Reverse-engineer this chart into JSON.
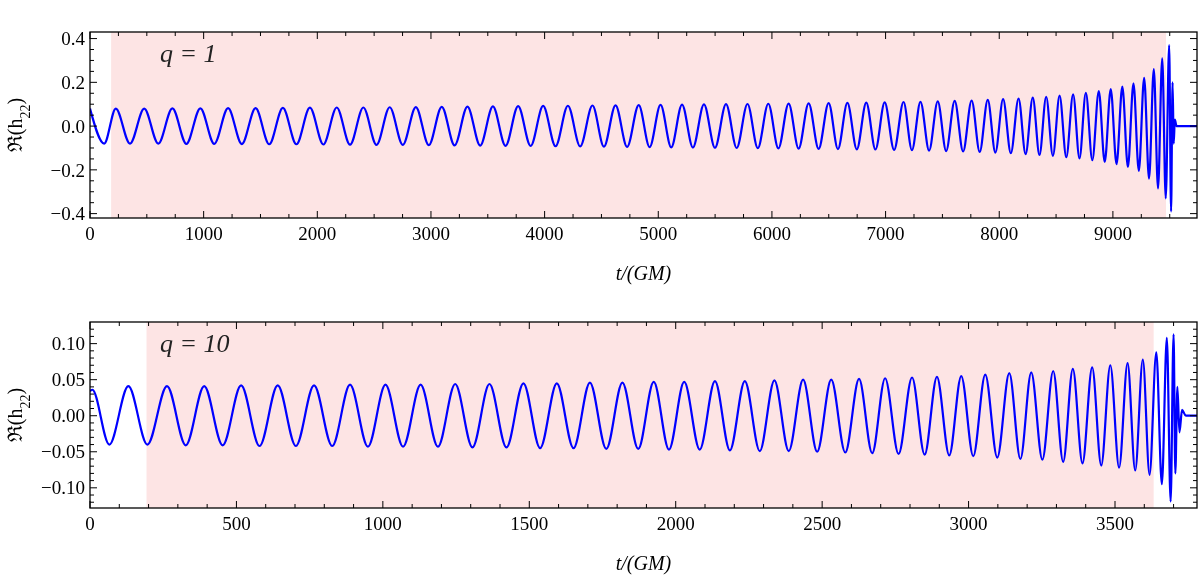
{
  "chart_data": [
    {
      "type": "line",
      "xlabel": "t/(GM)",
      "ylabel": "ℜ(h$_{22}$)",
      "annotations": [
        "q = 1"
      ],
      "xlim": [
        0,
        9740
      ],
      "ylim": [
        -0.42,
        0.43
      ],
      "xticks": [
        0,
        {
          "value": 250,
          "label": null
        },
        {
          "value": 500,
          "label": null
        },
        {
          "value": 750,
          "label": null
        },
        1000,
        {
          "value": 1250,
          "label": null
        },
        {
          "value": 1500,
          "label": null
        },
        {
          "value": 1750,
          "label": null
        },
        2000,
        {
          "value": 2250,
          "label": null
        },
        {
          "value": 2500,
          "label": null
        },
        {
          "value": 2750,
          "label": null
        },
        3000,
        {
          "value": 3250,
          "label": null
        },
        {
          "value": 3500,
          "label": null
        },
        {
          "value": 3750,
          "label": null
        },
        4000,
        {
          "value": 4250,
          "label": null
        },
        {
          "value": 4500,
          "label": null
        },
        {
          "value": 4750,
          "label": null
        },
        5000,
        {
          "value": 5250,
          "label": null
        },
        {
          "value": 5500,
          "label": null
        },
        {
          "value": 5750,
          "label": null
        },
        6000,
        {
          "value": 6250,
          "label": null
        },
        {
          "value": 6500,
          "label": null
        },
        {
          "value": 6750,
          "label": null
        },
        7000,
        {
          "value": 7250,
          "label": null
        },
        {
          "value": 7500,
          "label": null
        },
        {
          "value": 7750,
          "label": null
        },
        8000,
        {
          "value": 8250,
          "label": null
        },
        {
          "value": 8500,
          "label": null
        },
        {
          "value": 8750,
          "label": null
        },
        9000,
        {
          "value": 9250,
          "label": null
        },
        {
          "value": 9500,
          "label": null
        }
      ],
      "yticks": [
        {
          "value": -0.4,
          "label": "−0.4"
        },
        {
          "value": -0.35,
          "label": null
        },
        {
          "value": -0.3,
          "label": null
        },
        {
          "value": -0.25,
          "label": null
        },
        {
          "value": -0.2,
          "label": "−0.2"
        },
        {
          "value": -0.15,
          "label": null
        },
        {
          "value": -0.1,
          "label": null
        },
        {
          "value": -0.05,
          "label": null
        },
        {
          "value": 0,
          "label": "0.0"
        },
        {
          "value": 0.05,
          "label": null
        },
        {
          "value": 0.1,
          "label": null
        },
        {
          "value": 0.15,
          "label": null
        },
        0.2,
        {
          "value": 0.25,
          "label": null
        },
        {
          "value": 0.3,
          "label": null
        },
        {
          "value": 0.35,
          "label": null
        },
        0.4
      ],
      "bands": [
        {
          "axis": "x",
          "from": 186,
          "to": 9467,
          "color": "#fde4e4"
        }
      ],
      "series": [
        {
          "color": "#0000ff",
          "x": [
            0,
            125,
            227,
            352,
            477,
            601,
            725,
            848,
            971,
            1093,
            1215,
            1336,
            1457,
            1577,
            1697,
            1816,
            1935,
            2053,
            2171,
            2288,
            2405,
            2521,
            2637,
            2752,
            2867,
            2981,
            3095,
            3208,
            3321,
            3433,
            3545,
            3656,
            3767,
            3877,
            3987,
            4096,
            4205,
            4313,
            4421,
            4522,
            4624,
            4726,
            4828,
            4924,
            5020,
            5114,
            5209,
            5305,
            5402,
            5499,
            5596,
            5690,
            5785,
            5876,
            5968,
            6057,
            6147,
            6235,
            6323,
            6411,
            6499,
            6581,
            6664,
            6747,
            6830,
            6911,
            6992,
            7075,
            7158,
            7232,
            7307,
            7383,
            7459,
            7533,
            7608,
            7682,
            7757,
            7828,
            7899,
            7966,
            8034,
            8102,
            8170,
            8232,
            8295,
            8354,
            8413,
            8472,
            8531,
            8590,
            8650,
            8706,
            8762,
            8819,
            8876,
            8928,
            8981,
            9032,
            9083,
            9132,
            9181,
            9228,
            9275,
            9318,
            9360,
            9397,
            9434,
            9465,
            9495,
            9512,
            9525,
            9535,
            9545,
            9560,
            9740
          ],
          "values": [
            0.08,
            -0.08,
            0.08,
            -0.08,
            0.08,
            -0.08,
            0.081,
            -0.081,
            0.081,
            -0.081,
            0.082,
            -0.082,
            0.082,
            -0.083,
            0.083,
            -0.083,
            0.084,
            -0.084,
            0.085,
            -0.085,
            0.085,
            -0.086,
            0.086,
            -0.086,
            0.087,
            -0.087,
            0.088,
            -0.088,
            0.089,
            -0.089,
            0.09,
            -0.09,
            0.091,
            -0.091,
            0.092,
            -0.092,
            0.093,
            -0.093,
            0.094,
            -0.094,
            0.095,
            -0.095,
            0.096,
            -0.096,
            0.097,
            -0.097,
            0.098,
            -0.098,
            0.099,
            -0.099,
            0.1,
            -0.1,
            0.101,
            -0.101,
            0.102,
            -0.102,
            0.103,
            -0.103,
            0.104,
            -0.104,
            0.105,
            -0.105,
            0.106,
            -0.106,
            0.107,
            -0.107,
            0.108,
            -0.109,
            0.11,
            -0.11,
            0.111,
            -0.112,
            0.113,
            -0.114,
            0.115,
            -0.116,
            0.117,
            -0.118,
            0.12,
            -0.121,
            0.123,
            -0.124,
            0.126,
            -0.128,
            0.13,
            -0.132,
            0.134,
            -0.136,
            0.139,
            -0.142,
            0.145,
            -0.148,
            0.152,
            -0.156,
            0.16,
            -0.164,
            0.169,
            -0.174,
            0.18,
            -0.187,
            0.195,
            -0.205,
            0.22,
            -0.24,
            0.26,
            -0.285,
            0.31,
            -0.33,
            0.37,
            -0.39,
            0.2,
            -0.08,
            0.03,
            0,
            0
          ]
        }
      ]
    },
    {
      "type": "line",
      "xlabel": "t/(GM)",
      "ylabel": "ℜ(h$_{22}$)",
      "annotations": [
        "q = 10"
      ],
      "xlim": [
        0,
        3780
      ],
      "ylim": [
        -0.128,
        0.13
      ],
      "xticks": [
        0,
        {
          "value": 100,
          "label": null
        },
        {
          "value": 200,
          "label": null
        },
        {
          "value": 300,
          "label": null
        },
        {
          "value": 400,
          "label": null
        },
        500,
        {
          "value": 600,
          "label": null
        },
        {
          "value": 700,
          "label": null
        },
        {
          "value": 800,
          "label": null
        },
        {
          "value": 900,
          "label": null
        },
        1000,
        {
          "value": 1100,
          "label": null
        },
        {
          "value": 1200,
          "label": null
        },
        {
          "value": 1300,
          "label": null
        },
        {
          "value": 1400,
          "label": null
        },
        1500,
        {
          "value": 1600,
          "label": null
        },
        {
          "value": 1700,
          "label": null
        },
        {
          "value": 1800,
          "label": null
        },
        {
          "value": 1900,
          "label": null
        },
        2000,
        {
          "value": 2100,
          "label": null
        },
        {
          "value": 2200,
          "label": null
        },
        {
          "value": 2300,
          "label": null
        },
        {
          "value": 2400,
          "label": null
        },
        2500,
        {
          "value": 2600,
          "label": null
        },
        {
          "value": 2700,
          "label": null
        },
        {
          "value": 2800,
          "label": null
        },
        {
          "value": 2900,
          "label": null
        },
        3000,
        {
          "value": 3100,
          "label": null
        },
        {
          "value": 3200,
          "label": null
        },
        {
          "value": 3300,
          "label": null
        },
        {
          "value": 3400,
          "label": null
        },
        3500,
        {
          "value": 3600,
          "label": null
        },
        {
          "value": 3700,
          "label": null
        }
      ],
      "yticks": [
        {
          "value": -0.12,
          "label": null
        },
        {
          "value": -0.11,
          "label": null
        },
        {
          "value": -0.1,
          "label": "−0.10"
        },
        {
          "value": -0.09,
          "label": null
        },
        {
          "value": -0.08,
          "label": null
        },
        {
          "value": -0.07,
          "label": null
        },
        {
          "value": -0.06,
          "label": null
        },
        {
          "value": -0.05,
          "label": "−0.05"
        },
        {
          "value": -0.04,
          "label": null
        },
        {
          "value": -0.03,
          "label": null
        },
        {
          "value": -0.02,
          "label": null
        },
        {
          "value": -0.01,
          "label": null
        },
        {
          "value": 0,
          "label": "0.00"
        },
        {
          "value": 0.01,
          "label": null
        },
        {
          "value": 0.02,
          "label": null
        },
        {
          "value": 0.03,
          "label": null
        },
        {
          "value": 0.04,
          "label": null
        },
        {
          "value": 0.05,
          "label": "0.05"
        },
        {
          "value": 0.06,
          "label": null
        },
        {
          "value": 0.07,
          "label": null
        },
        {
          "value": 0.08,
          "label": null
        },
        {
          "value": 0.09,
          "label": null
        },
        {
          "value": 0.1,
          "label": "0.10"
        },
        {
          "value": 0.11,
          "label": null
        },
        {
          "value": 0.12,
          "label": null
        }
      ],
      "bands": [
        {
          "axis": "x",
          "from": 193,
          "to": 3632,
          "color": "#fde4e4"
        }
      ],
      "series": [
        {
          "color": "#0000ff",
          "x": [
            0,
            8,
            66,
            131,
            196,
            263,
            327,
            390,
            453,
            516,
            579,
            641,
            703,
            765,
            827,
            888,
            949,
            1009,
            1069,
            1129,
            1188,
            1247,
            1306,
            1364,
            1422,
            1480,
            1537,
            1594,
            1651,
            1707,
            1763,
            1818,
            1872,
            1925,
            1977,
            2029,
            2082,
            2134,
            2185,
            2236,
            2287,
            2337,
            2386,
            2435,
            2483,
            2531,
            2579,
            2626,
            2671,
            2715,
            2761,
            2807,
            2850,
            2892,
            2934,
            2975,
            3016,
            3057,
            3098,
            3139,
            3177,
            3214,
            3252,
            3289,
            3323,
            3356,
            3389,
            3422,
            3453,
            3484,
            3514,
            3543,
            3569,
            3595,
            3618,
            3641,
            3660,
            3677,
            3690,
            3700,
            3706,
            3713,
            3720,
            3729,
            3742,
            3780
          ],
          "values": [
            0.034,
            0.036,
            -0.04,
            0.041,
            -0.04,
            0.041,
            -0.041,
            0.041,
            -0.041,
            0.042,
            -0.042,
            0.042,
            -0.042,
            0.042,
            -0.042,
            0.043,
            -0.043,
            0.043,
            -0.043,
            0.043,
            -0.043,
            0.044,
            -0.044,
            0.044,
            -0.044,
            0.045,
            -0.045,
            0.045,
            -0.045,
            0.046,
            -0.046,
            0.046,
            -0.046,
            0.047,
            -0.047,
            0.047,
            -0.047,
            0.048,
            -0.048,
            0.048,
            -0.049,
            0.049,
            -0.049,
            0.05,
            -0.05,
            0.05,
            -0.051,
            0.051,
            -0.052,
            0.052,
            -0.053,
            0.053,
            -0.054,
            0.054,
            -0.055,
            0.055,
            -0.056,
            0.057,
            -0.058,
            0.059,
            -0.06,
            0.06,
            -0.061,
            0.062,
            -0.064,
            0.065,
            -0.066,
            0.067,
            -0.069,
            0.07,
            -0.072,
            0.073,
            -0.076,
            0.078,
            -0.082,
            0.088,
            -0.095,
            0.108,
            -0.119,
            0.113,
            -0.08,
            0.04,
            -0.023,
            0.008,
            0,
            0
          ]
        }
      ]
    }
  ]
}
